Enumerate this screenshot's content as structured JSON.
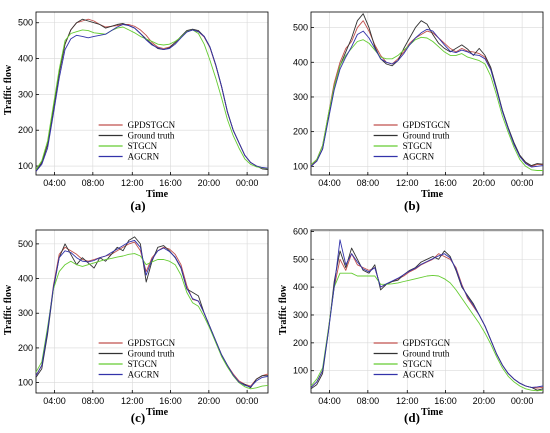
{
  "chart_data": [
    {
      "type": "line",
      "panel_label": "(a)",
      "xlabel": "Time",
      "ylabel": "Traffic flow",
      "xticks": [
        "04:00",
        "08:00",
        "12:00",
        "16:00",
        "20:00",
        "00:00"
      ],
      "yticks": [
        100,
        200,
        300,
        400,
        500
      ],
      "ylim": [
        75,
        530
      ],
      "grid": true,
      "legend_position": "lower-middle",
      "series": [
        {
          "name": "GPDSTGCN",
          "color": "#c0504d",
          "values": [
            85,
            110,
            160,
            260,
            360,
            440,
            480,
            500,
            505,
            510,
            505,
            495,
            488,
            490,
            492,
            495,
            495,
            490,
            480,
            465,
            445,
            432,
            428,
            432,
            445,
            460,
            475,
            480,
            475,
            460,
            430,
            380,
            320,
            250,
            200,
            165,
            130,
            110,
            100,
            95,
            92
          ]
        },
        {
          "name": "Ground truth",
          "color": "#333333",
          "values": [
            85,
            110,
            160,
            260,
            360,
            440,
            480,
            500,
            510,
            505,
            500,
            495,
            485,
            490,
            495,
            498,
            492,
            485,
            470,
            455,
            440,
            428,
            425,
            430,
            445,
            462,
            478,
            482,
            478,
            462,
            432,
            382,
            322,
            252,
            200,
            165,
            130,
            110,
            100,
            92,
            90
          ]
        },
        {
          "name": "STGCN",
          "color": "#66cc33",
          "values": [
            90,
            115,
            170,
            270,
            370,
            450,
            470,
            475,
            480,
            478,
            472,
            470,
            468,
            478,
            485,
            488,
            480,
            472,
            462,
            455,
            448,
            440,
            438,
            440,
            448,
            460,
            475,
            480,
            470,
            440,
            395,
            345,
            290,
            230,
            185,
            150,
            120,
            105,
            98,
            95,
            93
          ]
        },
        {
          "name": "AGCRN",
          "color": "#3333aa",
          "values": [
            85,
            105,
            150,
            245,
            345,
            425,
            455,
            465,
            462,
            458,
            462,
            465,
            468,
            478,
            488,
            495,
            492,
            485,
            470,
            452,
            438,
            430,
            425,
            428,
            440,
            458,
            474,
            480,
            475,
            462,
            432,
            382,
            322,
            252,
            200,
            165,
            130,
            110,
            100,
            96,
            94
          ]
        }
      ]
    },
    {
      "type": "line",
      "panel_label": "(b)",
      "xlabel": "Time",
      "ylabel": "",
      "xticks": [
        "04:00",
        "08:00",
        "12:00",
        "16:00",
        "20:00",
        "00:00"
      ],
      "yticks": [
        100,
        200,
        300,
        400,
        500
      ],
      "ylim": [
        75,
        545
      ],
      "grid": true,
      "legend_position": "lower-middle",
      "series": [
        {
          "name": "GPDSTGCN",
          "color": "#c0504d",
          "values": [
            100,
            120,
            160,
            250,
            340,
            400,
            440,
            460,
            500,
            520,
            490,
            450,
            420,
            400,
            395,
            410,
            430,
            455,
            470,
            480,
            490,
            485,
            470,
            455,
            440,
            430,
            440,
            432,
            430,
            425,
            415,
            380,
            320,
            260,
            210,
            165,
            130,
            110,
            100,
            105,
            105
          ]
        },
        {
          "name": "Ground truth",
          "color": "#333333",
          "values": [
            100,
            115,
            150,
            240,
            330,
            390,
            430,
            470,
            520,
            540,
            500,
            445,
            410,
            395,
            390,
            405,
            440,
            470,
            500,
            520,
            510,
            480,
            455,
            440,
            430,
            440,
            450,
            438,
            420,
            440,
            420,
            385,
            325,
            262,
            212,
            168,
            132,
            112,
            102,
            108,
            106
          ]
        },
        {
          "name": "STGCN",
          "color": "#66cc33",
          "values": [
            105,
            120,
            160,
            250,
            330,
            390,
            420,
            440,
            460,
            465,
            455,
            435,
            415,
            410,
            410,
            420,
            435,
            450,
            465,
            472,
            470,
            460,
            445,
            430,
            420,
            420,
            425,
            415,
            410,
            405,
            395,
            360,
            305,
            245,
            198,
            155,
            120,
            100,
            90,
            88,
            88
          ]
        },
        {
          "name": "AGCRN",
          "color": "#3333aa",
          "values": [
            100,
            115,
            150,
            235,
            320,
            380,
            415,
            445,
            480,
            490,
            470,
            440,
            410,
            400,
            395,
            405,
            425,
            450,
            470,
            485,
            495,
            490,
            470,
            450,
            432,
            428,
            435,
            430,
            422,
            420,
            410,
            378,
            320,
            258,
            208,
            163,
            128,
            108,
            98,
            100,
            102
          ]
        }
      ]
    },
    {
      "type": "line",
      "panel_label": "(c)",
      "xlabel": "Time",
      "ylabel": "Traffic flow",
      "xticks": [
        "04:00",
        "08:00",
        "12:00",
        "16:00",
        "20:00",
        "00:00"
      ],
      "yticks": [
        100,
        200,
        300,
        400,
        500
      ],
      "ylim": [
        70,
        540
      ],
      "grid": true,
      "legend_position": "lower-middle",
      "series": [
        {
          "name": "GPDSTGCN",
          "color": "#c0504d",
          "values": [
            120,
            150,
            250,
            380,
            470,
            490,
            480,
            470,
            455,
            450,
            455,
            460,
            465,
            470,
            480,
            490,
            500,
            505,
            480,
            420,
            460,
            480,
            490,
            485,
            470,
            440,
            380,
            340,
            335,
            300,
            260,
            220,
            180,
            150,
            125,
            105,
            95,
            90,
            110,
            120,
            125
          ]
        },
        {
          "name": "Ground truth",
          "color": "#333333",
          "values": [
            115,
            140,
            240,
            370,
            460,
            500,
            470,
            440,
            460,
            445,
            430,
            460,
            450,
            470,
            490,
            480,
            510,
            520,
            500,
            390,
            450,
            490,
            495,
            480,
            460,
            430,
            370,
            360,
            350,
            300,
            260,
            220,
            180,
            150,
            120,
            100,
            95,
            85,
            110,
            120,
            120
          ]
        },
        {
          "name": "STGCN",
          "color": "#66cc33",
          "values": [
            130,
            160,
            260,
            370,
            420,
            440,
            450,
            440,
            435,
            440,
            445,
            450,
            455,
            458,
            462,
            465,
            470,
            472,
            465,
            440,
            448,
            455,
            455,
            450,
            440,
            410,
            360,
            330,
            320,
            290,
            255,
            215,
            175,
            145,
            120,
            100,
            88,
            82,
            85,
            90,
            92
          ]
        },
        {
          "name": "AGCRN",
          "color": "#3333aa",
          "values": [
            120,
            150,
            250,
            375,
            460,
            480,
            475,
            460,
            450,
            448,
            452,
            460,
            465,
            475,
            485,
            495,
            505,
            510,
            490,
            410,
            455,
            480,
            488,
            478,
            462,
            432,
            372,
            342,
            335,
            300,
            260,
            220,
            180,
            150,
            122,
            102,
            92,
            88,
            105,
            115,
            118
          ]
        }
      ]
    },
    {
      "type": "line",
      "panel_label": "(d)",
      "xlabel": "Time",
      "ylabel": "Traffic flow",
      "xticks": [
        "04:00",
        "08:00",
        "12:00",
        "16:00",
        "20:00",
        "00:00"
      ],
      "yticks": [
        100,
        200,
        300,
        400,
        500,
        600
      ],
      "ylim": [
        20,
        605
      ],
      "grid": true,
      "legend_position": "lower-middle",
      "series": [
        {
          "name": "GPDSTGCN",
          "color": "#c0504d",
          "values": [
            40,
            60,
            100,
            250,
            400,
            500,
            460,
            520,
            480,
            470,
            460,
            470,
            400,
            410,
            420,
            430,
            440,
            455,
            465,
            480,
            490,
            500,
            520,
            510,
            500,
            470,
            410,
            360,
            330,
            300,
            260,
            210,
            160,
            120,
            90,
            70,
            55,
            45,
            40,
            38,
            40
          ]
        },
        {
          "name": "Ground truth",
          "color": "#333333",
          "values": [
            35,
            50,
            90,
            240,
            420,
            530,
            470,
            540,
            500,
            460,
            450,
            480,
            390,
            410,
            420,
            425,
            445,
            460,
            470,
            490,
            500,
            510,
            500,
            530,
            510,
            460,
            400,
            370,
            340,
            300,
            260,
            210,
            160,
            120,
            90,
            70,
            55,
            45,
            40,
            30,
            35
          ]
        },
        {
          "name": "STGCN",
          "color": "#66cc33",
          "values": [
            45,
            70,
            110,
            250,
            400,
            450,
            450,
            450,
            440,
            440,
            440,
            440,
            410,
            410,
            412,
            415,
            420,
            425,
            430,
            435,
            440,
            442,
            440,
            430,
            415,
            390,
            360,
            330,
            300,
            270,
            235,
            195,
            150,
            110,
            80,
            60,
            45,
            35,
            30,
            28,
            30
          ]
        },
        {
          "name": "AGCRN",
          "color": "#3333aa",
          "values": [
            40,
            60,
            100,
            240,
            400,
            570,
            480,
            520,
            490,
            465,
            455,
            470,
            400,
            412,
            422,
            432,
            445,
            458,
            468,
            482,
            492,
            502,
            512,
            520,
            505,
            465,
            405,
            365,
            335,
            300,
            260,
            210,
            160,
            120,
            90,
            70,
            55,
            45,
            40,
            42,
            45
          ]
        }
      ]
    }
  ]
}
